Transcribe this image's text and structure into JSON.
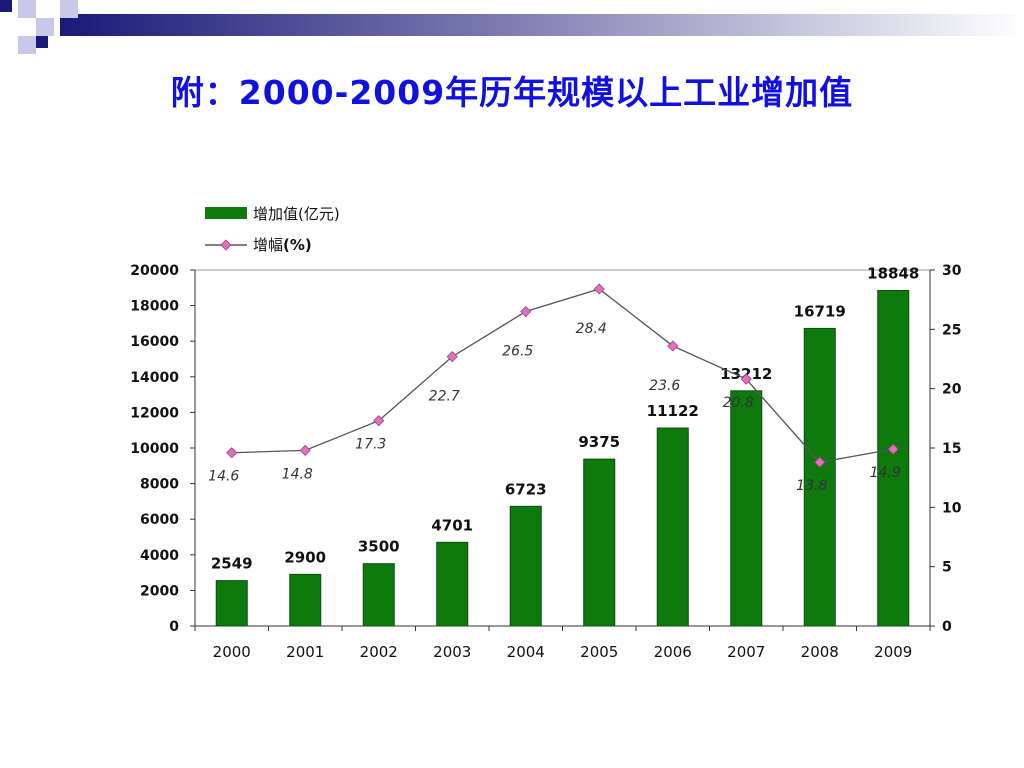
{
  "slide": {
    "title": "附：2000-2009年历年规模以上工业增加值"
  },
  "colors": {
    "title": "#1010e0",
    "bar": "#0e7a0e",
    "line": "#555555",
    "marker": "#e070c0",
    "deco_dark": "#1a1a78",
    "deco_light": "#c8c8e8"
  },
  "chart_data": {
    "type": "bar+line",
    "categories": [
      "2000",
      "2001",
      "2002",
      "2003",
      "2004",
      "2005",
      "2006",
      "2007",
      "2008",
      "2009"
    ],
    "series": [
      {
        "name": "增加值(亿元)",
        "type": "bar",
        "axis": "left",
        "values": [
          2549,
          2900,
          3500,
          4701,
          6723,
          9375,
          11122,
          13212,
          16719,
          18848
        ]
      },
      {
        "name": "增幅(%)",
        "type": "line",
        "axis": "right",
        "values": [
          14.6,
          14.8,
          17.3,
          22.7,
          26.5,
          28.4,
          23.6,
          20.8,
          13.8,
          14.9
        ]
      }
    ],
    "left_axis": {
      "range": [
        0,
        20000
      ],
      "ticks": [
        "0",
        "2000",
        "4000",
        "6000",
        "8000",
        "10000",
        "12000",
        "14000",
        "16000",
        "18000",
        "20000"
      ]
    },
    "right_axis": {
      "range": [
        0,
        30
      ],
      "ticks": [
        "0",
        "5",
        "10",
        "15",
        "20",
        "25",
        "30"
      ]
    },
    "bar_labels": [
      "2549",
      "2900",
      "3500",
      "4701",
      "6723",
      "9375",
      "11122",
      "13212",
      "16719",
      "18848"
    ],
    "line_labels": [
      "14.6",
      "14.8",
      "17.3",
      "22.7",
      "26.5",
      "28.4",
      "23.6",
      "20.8",
      "13.8",
      "14.9"
    ],
    "legend": {
      "placement": "top-left",
      "bar_name": "增加值",
      "bar_unit": "(亿元)",
      "line_name": "增幅",
      "line_unit": "(%)"
    },
    "grid": false
  }
}
